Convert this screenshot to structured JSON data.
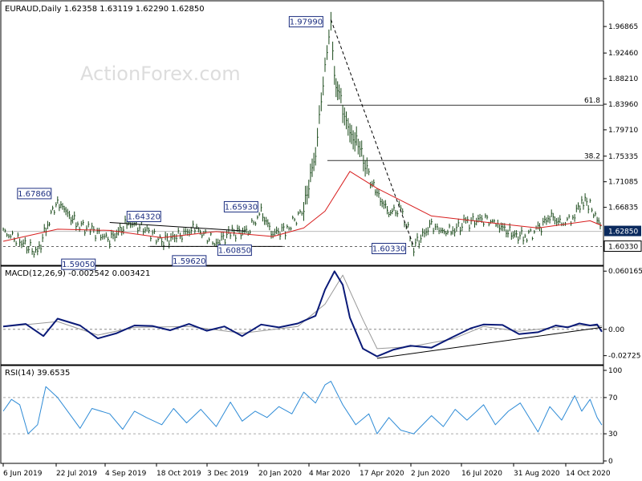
{
  "watermark": "ActionForex.com",
  "colors": {
    "background": "#ffffff",
    "price": "#1a4a1a",
    "ma": "#d81e1e",
    "macd": "#0a1a78",
    "signal": "#999999",
    "rsi": "#2e8bd6",
    "label_border": "#1c2e80",
    "current_label_bg": "#0a2a5e",
    "watermark": "#dddddd"
  },
  "chart_data": [
    {
      "type": "line",
      "panel": "price",
      "title": "EURAUD,Daily  1.62358 1.63119 1.62290 1.62850",
      "x_dates": [
        "6 Jun 2019",
        "22 Jul 2019",
        "4 Sep 2019",
        "18 Oct 2019",
        "3 Dec 2019",
        "20 Jan 2020",
        "4 Mar 2020",
        "17 Apr 2020",
        "2 Jun 2020",
        "16 Jul 2020",
        "31 Aug 2020",
        "14 Oct 2020"
      ],
      "yticks": [
        "1.96865",
        "1.92460",
        "1.88210",
        "1.83960",
        "1.79710",
        "1.75335",
        "1.71085",
        "1.66835",
        "1.62850",
        "1.60330"
      ],
      "ylim": [
        1.584,
        2.002
      ],
      "current_price": "1.62850",
      "current_price_value": 1.6285,
      "support_line": {
        "value": 1.6033
      },
      "series": [
        {
          "style": "bars",
          "x": [
            "2019-06-06",
            "2019-06-20",
            "2019-07-05",
            "2019-07-15",
            "2019-07-22",
            "2019-07-29",
            "2019-08-08",
            "2019-08-20",
            "2019-09-04",
            "2019-09-20",
            "2019-10-04",
            "2019-10-18",
            "2019-11-01",
            "2019-11-15",
            "2019-12-03",
            "2019-12-15",
            "2019-12-30",
            "2020-01-10",
            "2020-01-20",
            "2020-02-01",
            "2020-02-15",
            "2020-02-25",
            "2020-03-04",
            "2020-03-09",
            "2020-03-12",
            "2020-03-16",
            "2020-03-19",
            "2020-03-25",
            "2020-04-01",
            "2020-04-10",
            "2020-04-17",
            "2020-04-27",
            "2020-05-07",
            "2020-05-18",
            "2020-06-02",
            "2020-06-10",
            "2020-06-20",
            "2020-07-01",
            "2020-07-16",
            "2020-07-28",
            "2020-08-10",
            "2020-08-20",
            "2020-08-31",
            "2020-09-10",
            "2020-09-20",
            "2020-10-01",
            "2020-10-07",
            "2020-10-14",
            "2020-10-20",
            "2020-10-24"
          ],
          "values": [
            1.628,
            1.612,
            1.592,
            1.65,
            1.6786,
            1.66,
            1.64,
            1.63,
            1.615,
            1.6432,
            1.632,
            1.612,
            1.62,
            1.634,
            1.6085,
            1.6254,
            1.6295,
            1.6593,
            1.625,
            1.632,
            1.665,
            1.76,
            1.9,
            1.9799,
            1.88,
            1.86,
            1.83,
            1.79,
            1.775,
            1.72,
            1.69,
            1.66,
            1.665,
            1.6033,
            1.64,
            1.627,
            1.63,
            1.642,
            1.65,
            1.64,
            1.622,
            1.62,
            1.63,
            1.655,
            1.64,
            1.654,
            1.682,
            1.67,
            1.65,
            1.6285
          ]
        },
        {
          "name": "",
          "style": "ma",
          "x": [
            "2019-06-06",
            "2019-07-22",
            "2019-09-04",
            "2019-10-18",
            "2019-12-03",
            "2020-01-20",
            "2020-02-15",
            "2020-03-04",
            "2020-03-25",
            "2020-04-17",
            "2020-06-02",
            "2020-07-16",
            "2020-08-31",
            "2020-10-14",
            "2020-10-24"
          ],
          "values": [
            1.612,
            1.632,
            1.63,
            1.618,
            1.628,
            1.62,
            1.634,
            1.662,
            1.728,
            1.7,
            1.654,
            1.644,
            1.634,
            1.646,
            1.638
          ]
        }
      ],
      "annotations": [
        {
          "text": "1.97990",
          "x": "2020-03-09",
          "y": 1.9799
        },
        {
          "text": "1.67860",
          "x": "2019-07-22",
          "y": 1.6786
        },
        {
          "text": "1.64320",
          "x": "2019-09-20",
          "y": 1.6432
        },
        {
          "text": "1.65930",
          "x": "2020-01-10",
          "y": 1.6593
        },
        {
          "text": "1.59050",
          "x": "2019-07-05",
          "y": 1.5905
        },
        {
          "text": "1.59620",
          "x": "2019-11-15",
          "y": 1.5962
        },
        {
          "text": "1.60850",
          "x": "2019-12-03",
          "y": 1.6085
        },
        {
          "text": "1.60330",
          "x": "2020-05-18",
          "y": 1.6033
        }
      ],
      "fib_levels": [
        {
          "label": "61.8",
          "value": 1.838
        },
        {
          "label": "38.2",
          "value": 1.746
        }
      ]
    },
    {
      "type": "line",
      "panel": "macd",
      "title": "MACD(12,26,9) -0.002542 0.003421",
      "yticks": [
        "0.060165",
        "0.00",
        "-0.02725"
      ],
      "ylim": [
        -0.035,
        0.062
      ],
      "series": [
        {
          "name": "",
          "role": "macd",
          "x": [
            "2019-06-06",
            "2019-06-25",
            "2019-07-10",
            "2019-07-22",
            "2019-08-10",
            "2019-08-25",
            "2019-09-10",
            "2019-09-25",
            "2019-10-10",
            "2019-10-25",
            "2019-11-10",
            "2019-11-25",
            "2019-12-10",
            "2019-12-25",
            "2020-01-10",
            "2020-01-25",
            "2020-02-10",
            "2020-02-25",
            "2020-03-04",
            "2020-03-12",
            "2020-03-19",
            "2020-03-25",
            "2020-04-05",
            "2020-04-17",
            "2020-05-01",
            "2020-05-15",
            "2020-06-02",
            "2020-06-20",
            "2020-07-05",
            "2020-07-16",
            "2020-08-01",
            "2020-08-15",
            "2020-08-31",
            "2020-09-15",
            "2020-09-25",
            "2020-10-05",
            "2020-10-14",
            "2020-10-20",
            "2020-10-24"
          ],
          "values": [
            0.003,
            0.0055,
            -0.007,
            0.011,
            0.004,
            -0.0095,
            -0.004,
            0.004,
            0.0035,
            -0.001,
            0.0055,
            -0.0015,
            0.003,
            -0.007,
            0.005,
            0.002,
            0.006,
            0.014,
            0.041,
            0.06,
            0.046,
            0.012,
            -0.02,
            -0.028,
            -0.021,
            -0.017,
            -0.019,
            -0.008,
            0.001,
            0.005,
            0.0045,
            -0.005,
            -0.003,
            0.004,
            0.002,
            0.006,
            0.004,
            0.005,
            -0.0025
          ]
        },
        {
          "name": "",
          "role": "signal",
          "x": [
            "2019-06-06",
            "2019-07-22",
            "2019-08-25",
            "2019-09-25",
            "2019-11-10",
            "2019-12-25",
            "2020-02-10",
            "2020-03-04",
            "2020-03-19",
            "2020-04-05",
            "2020-04-17",
            "2020-05-15",
            "2020-06-20",
            "2020-07-16",
            "2020-08-15",
            "2020-09-15",
            "2020-10-05",
            "2020-10-24"
          ],
          "values": [
            0.0025,
            0.008,
            -0.006,
            0.002,
            0.003,
            -0.004,
            0.003,
            0.026,
            0.056,
            0.01,
            -0.02,
            -0.018,
            -0.01,
            0.003,
            -0.002,
            0.002,
            0.004,
            0.0034
          ]
        }
      ],
      "trendline": {
        "x": [
          "2020-04-17",
          "2020-10-24"
        ],
        "values": [
          -0.03,
          0.002
        ]
      }
    },
    {
      "type": "line",
      "panel": "rsi",
      "title": "RSI(14) 39.6535",
      "yticks": [
        "100",
        "70",
        "30",
        "0"
      ],
      "ylim": [
        0,
        100
      ],
      "levels": [
        70,
        30
      ],
      "series": [
        {
          "name": "",
          "x": [
            "2019-06-06",
            "2019-06-13",
            "2019-06-20",
            "2019-06-27",
            "2019-07-05",
            "2019-07-12",
            "2019-07-22",
            "2019-08-01",
            "2019-08-10",
            "2019-08-20",
            "2019-09-04",
            "2019-09-15",
            "2019-09-25",
            "2019-10-05",
            "2019-10-18",
            "2019-10-28",
            "2019-11-08",
            "2019-11-20",
            "2019-12-03",
            "2019-12-15",
            "2019-12-25",
            "2020-01-05",
            "2020-01-15",
            "2020-01-25",
            "2020-02-05",
            "2020-02-15",
            "2020-02-25",
            "2020-03-04",
            "2020-03-09",
            "2020-03-19",
            "2020-03-30",
            "2020-04-10",
            "2020-04-17",
            "2020-04-27",
            "2020-05-07",
            "2020-05-18",
            "2020-06-02",
            "2020-06-12",
            "2020-06-22",
            "2020-07-02",
            "2020-07-16",
            "2020-07-26",
            "2020-08-06",
            "2020-08-16",
            "2020-08-31",
            "2020-09-10",
            "2020-09-20",
            "2020-10-01",
            "2020-10-07",
            "2020-10-14",
            "2020-10-20",
            "2020-10-24"
          ],
          "values": [
            55,
            68,
            62,
            30,
            40,
            82,
            70,
            52,
            36,
            58,
            52,
            35,
            55,
            48,
            40,
            58,
            42,
            57,
            38,
            65,
            44,
            55,
            48,
            60,
            52,
            76,
            64,
            84,
            88,
            62,
            40,
            52,
            30,
            48,
            34,
            30,
            50,
            38,
            57,
            45,
            62,
            40,
            55,
            64,
            32,
            60,
            45,
            72,
            55,
            68,
            48,
            39.65
          ]
        }
      ]
    }
  ]
}
